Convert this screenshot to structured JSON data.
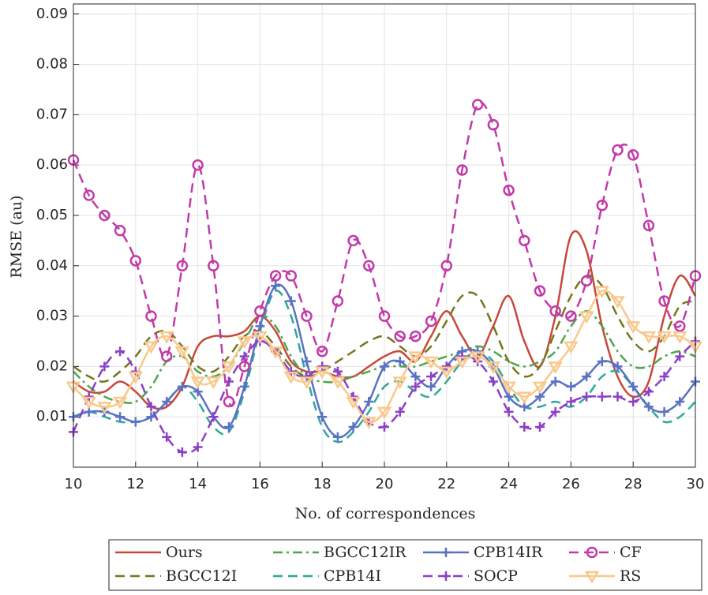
{
  "chart_data": {
    "type": "line",
    "xlabel": "No. of correspondences",
    "ylabel": "RMSE (au)",
    "x": [
      10,
      10.5,
      11,
      11.5,
      12,
      12.5,
      13,
      13.5,
      14,
      14.5,
      15,
      15.5,
      16,
      16.5,
      17,
      17.5,
      18,
      18.5,
      19,
      19.5,
      20,
      20.5,
      21,
      21.5,
      22,
      22.5,
      23,
      23.5,
      24,
      24.5,
      25,
      25.5,
      26,
      26.5,
      27,
      27.5,
      28,
      28.5,
      29,
      29.5,
      30
    ],
    "xlim": [
      10,
      30
    ],
    "xticks": [
      10,
      12,
      14,
      16,
      18,
      20,
      22,
      24,
      26,
      28,
      30
    ],
    "ylim": [
      0,
      0.092
    ],
    "yticks": [
      0.01,
      0.02,
      0.03,
      0.04,
      0.05,
      0.06,
      0.07,
      0.08,
      0.09
    ],
    "grid": true,
    "legend": "bottom",
    "series": [
      {
        "name": "Ours",
        "color": "#c8483a",
        "dash": "solid",
        "marker": "none",
        "values": [
          0.017,
          0.015,
          0.015,
          0.017,
          0.015,
          0.012,
          0.012,
          0.016,
          0.024,
          0.026,
          0.026,
          0.027,
          0.03,
          0.027,
          0.021,
          0.019,
          0.019,
          0.018,
          0.018,
          0.02,
          0.022,
          0.023,
          0.021,
          0.026,
          0.031,
          0.026,
          0.022,
          0.028,
          0.034,
          0.025,
          0.02,
          0.03,
          0.046,
          0.043,
          0.028,
          0.018,
          0.014,
          0.017,
          0.03,
          0.038,
          0.034
        ]
      },
      {
        "name": "BGCC12I",
        "color": "#76761e",
        "dash": "dashed",
        "marker": "none",
        "values": [
          0.02,
          0.018,
          0.017,
          0.019,
          0.022,
          0.026,
          0.027,
          0.024,
          0.02,
          0.019,
          0.022,
          0.026,
          0.027,
          0.024,
          0.02,
          0.018,
          0.019,
          0.021,
          0.023,
          0.025,
          0.026,
          0.024,
          0.022,
          0.024,
          0.029,
          0.034,
          0.034,
          0.028,
          0.021,
          0.018,
          0.02,
          0.027,
          0.034,
          0.038,
          0.036,
          0.03,
          0.025,
          0.023,
          0.026,
          0.032,
          0.033
        ]
      },
      {
        "name": "BGCC12IR",
        "color": "#4ea64a",
        "dash": "dashdot",
        "marker": "none",
        "values": [
          0.019,
          0.016,
          0.014,
          0.013,
          0.013,
          0.016,
          0.021,
          0.022,
          0.019,
          0.018,
          0.02,
          0.025,
          0.03,
          0.028,
          0.022,
          0.018,
          0.017,
          0.017,
          0.018,
          0.019,
          0.02,
          0.02,
          0.02,
          0.021,
          0.022,
          0.023,
          0.024,
          0.023,
          0.021,
          0.02,
          0.021,
          0.023,
          0.028,
          0.031,
          0.028,
          0.023,
          0.02,
          0.02,
          0.022,
          0.023,
          0.022
        ]
      },
      {
        "name": "CPB14I",
        "color": "#2fa89c",
        "dash": "dashed",
        "marker": "none",
        "values": [
          0.01,
          0.011,
          0.01,
          0.009,
          0.009,
          0.01,
          0.013,
          0.016,
          0.013,
          0.008,
          0.007,
          0.015,
          0.027,
          0.035,
          0.03,
          0.018,
          0.008,
          0.005,
          0.007,
          0.011,
          0.016,
          0.017,
          0.015,
          0.014,
          0.017,
          0.021,
          0.023,
          0.021,
          0.016,
          0.012,
          0.012,
          0.013,
          0.012,
          0.014,
          0.018,
          0.019,
          0.016,
          0.012,
          0.009,
          0.01,
          0.013
        ]
      },
      {
        "name": "CPB14IR",
        "color": "#5a72c2",
        "dash": "solid",
        "marker": "plus",
        "values": [
          0.01,
          0.011,
          0.011,
          0.01,
          0.009,
          0.01,
          0.013,
          0.016,
          0.015,
          0.01,
          0.008,
          0.016,
          0.028,
          0.036,
          0.033,
          0.021,
          0.01,
          0.006,
          0.008,
          0.013,
          0.02,
          0.021,
          0.018,
          0.016,
          0.02,
          0.023,
          0.023,
          0.02,
          0.014,
          0.012,
          0.014,
          0.017,
          0.016,
          0.018,
          0.021,
          0.02,
          0.016,
          0.012,
          0.011,
          0.013,
          0.017
        ]
      },
      {
        "name": "SOCP",
        "color": "#8c40c6",
        "dash": "dashed",
        "marker": "plus",
        "values": [
          0.007,
          0.014,
          0.02,
          0.023,
          0.019,
          0.012,
          0.006,
          0.003,
          0.004,
          0.01,
          0.017,
          0.022,
          0.025,
          0.023,
          0.019,
          0.018,
          0.02,
          0.019,
          0.014,
          0.009,
          0.008,
          0.011,
          0.016,
          0.018,
          0.02,
          0.022,
          0.021,
          0.017,
          0.011,
          0.008,
          0.008,
          0.011,
          0.013,
          0.014,
          0.014,
          0.014,
          0.013,
          0.015,
          0.018,
          0.022,
          0.025
        ]
      },
      {
        "name": "CF",
        "color": "#c23aa8",
        "dash": "dashed",
        "marker": "circle",
        "values": [
          0.061,
          0.054,
          0.05,
          0.047,
          0.041,
          0.03,
          0.022,
          0.04,
          0.06,
          0.04,
          0.013,
          0.02,
          0.031,
          0.038,
          0.038,
          0.03,
          0.023,
          0.033,
          0.045,
          0.04,
          0.03,
          0.026,
          0.026,
          0.029,
          0.04,
          0.059,
          0.072,
          0.068,
          0.055,
          0.045,
          0.035,
          0.031,
          0.03,
          0.037,
          0.052,
          0.063,
          0.062,
          0.048,
          0.033,
          0.028,
          0.038
        ]
      },
      {
        "name": "RS",
        "color": "#f9c88c",
        "dash": "solid",
        "marker": "triangle-down",
        "values": [
          0.016,
          0.013,
          0.012,
          0.013,
          0.018,
          0.024,
          0.026,
          0.023,
          0.017,
          0.017,
          0.02,
          0.025,
          0.026,
          0.023,
          0.018,
          0.017,
          0.019,
          0.017,
          0.013,
          0.009,
          0.011,
          0.017,
          0.022,
          0.021,
          0.019,
          0.021,
          0.022,
          0.02,
          0.016,
          0.014,
          0.016,
          0.02,
          0.024,
          0.03,
          0.035,
          0.033,
          0.028,
          0.026,
          0.026,
          0.026,
          0.024
        ]
      }
    ]
  }
}
